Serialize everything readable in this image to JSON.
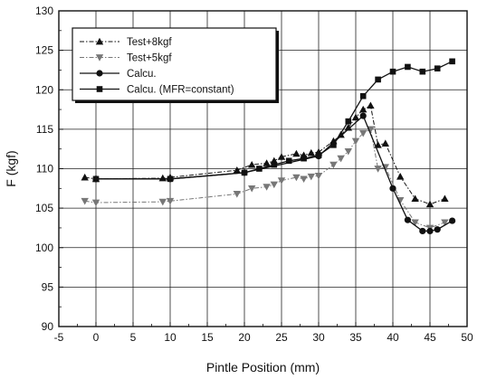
{
  "chart_data": {
    "type": "line",
    "title": "",
    "xlabel": "Pintle Position (mm)",
    "ylabel": "F (kgf)",
    "xlim": [
      -5,
      50
    ],
    "ylim": [
      90,
      130
    ],
    "xticks": [
      "-5",
      "0",
      "5",
      "10",
      "15",
      "20",
      "25",
      "30",
      "35",
      "40",
      "45",
      "50"
    ],
    "yticks": [
      "90",
      "95",
      "100",
      "105",
      "110",
      "115",
      "120",
      "125",
      "130"
    ],
    "grid": true,
    "legend_position": "top-left",
    "series": [
      {
        "name": "Test+8kgf",
        "marker": "triangle-up",
        "line_style": "dash-dot",
        "color": "#111111",
        "x": [
          -1.5,
          0,
          9,
          10,
          19,
          21,
          23,
          24,
          25,
          27,
          28,
          29,
          30,
          32,
          33,
          34,
          35,
          36,
          37,
          38,
          39,
          41,
          43,
          45,
          47
        ],
        "y": [
          108.9,
          108.7,
          108.8,
          108.9,
          109.8,
          110.5,
          110.7,
          111,
          111.5,
          111.9,
          111.7,
          112,
          112.1,
          113.5,
          114.3,
          115.2,
          116.5,
          117.5,
          118,
          113,
          113.2,
          109,
          106.2,
          105.5,
          106.2
        ]
      },
      {
        "name": "Test+5kgf",
        "marker": "triangle-down",
        "line_style": "dash-dot",
        "color": "#777777",
        "x": [
          -1.5,
          0,
          9,
          10,
          19,
          21,
          23,
          24,
          25,
          27,
          28,
          29,
          30,
          32,
          33,
          34,
          35,
          36,
          37,
          38,
          39,
          41,
          43,
          45,
          47
        ],
        "y": [
          105.9,
          105.7,
          105.8,
          105.9,
          106.8,
          107.5,
          107.7,
          108,
          108.5,
          108.9,
          108.7,
          109,
          109.1,
          110.5,
          111.3,
          112.2,
          113.5,
          114.5,
          115,
          110,
          110.2,
          106,
          103.2,
          102.5,
          103.2
        ]
      },
      {
        "name": "Calcu.",
        "marker": "circle",
        "line_style": "solid",
        "color": "#111111",
        "x": [
          0,
          10,
          20,
          30,
          36,
          40,
          42,
          44,
          45,
          46,
          48
        ],
        "y": [
          108.7,
          108.7,
          109.5,
          111.6,
          116.7,
          107.5,
          103.5,
          102.1,
          102.1,
          102.3,
          103.4
        ]
      },
      {
        "name": "Calcu. (MFR=constant)",
        "marker": "square",
        "line_style": "solid",
        "color": "#111111",
        "x": [
          0,
          10,
          20,
          22,
          24,
          26,
          28,
          30,
          32,
          34,
          36,
          38,
          40,
          42,
          44,
          46,
          48
        ],
        "y": [
          108.7,
          108.7,
          109.5,
          110,
          110.5,
          111,
          111.3,
          111.7,
          113,
          116,
          119.2,
          121.3,
          122.3,
          122.9,
          122.3,
          122.7,
          123.6
        ]
      }
    ]
  }
}
